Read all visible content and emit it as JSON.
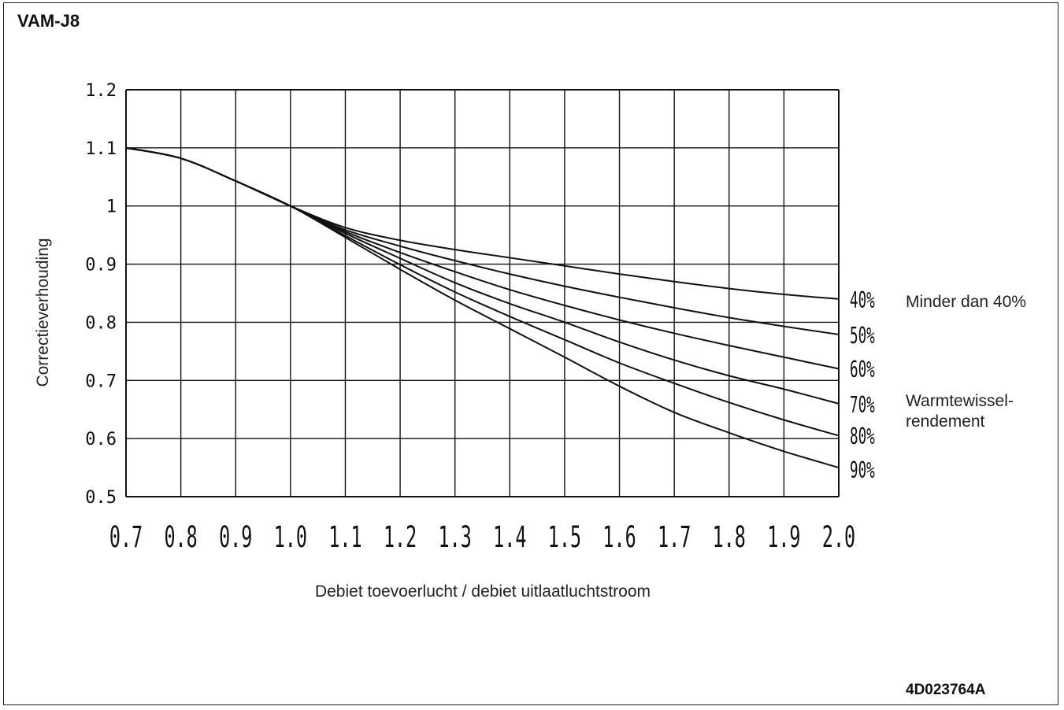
{
  "header": {
    "model": "VAM-J8",
    "doc_id": "4D023764A"
  },
  "chart_data": {
    "type": "line",
    "title": "VAM-J8",
    "xlabel": "Debiet toevoerlucht / debiet uitlaatluchtstroom",
    "ylabel": "Correctieverhouding",
    "xlim": [
      0.7,
      2.0
    ],
    "ylim": [
      0.5,
      1.2
    ],
    "x_ticks": [
      "0.7",
      "0.8",
      "0.9",
      "1.0",
      "1.1",
      "1.2",
      "1.3",
      "1.4",
      "1.5",
      "1.6",
      "1.7",
      "1.8",
      "1.9",
      "2.0"
    ],
    "y_ticks": [
      "0.5",
      "0.6",
      "0.7",
      "0.8",
      "0.9",
      "1",
      "1.1",
      "1.2"
    ],
    "grid": true,
    "series": [
      {
        "name": "40%",
        "x": [
          0.7,
          0.8,
          0.9,
          1.0,
          1.1,
          1.2,
          1.3,
          1.4,
          1.5,
          1.6,
          1.7,
          1.8,
          1.9,
          2.0
        ],
        "y": [
          1.1,
          1.082,
          1.043,
          1.0,
          0.963,
          0.941,
          0.925,
          0.911,
          0.897,
          0.883,
          0.87,
          0.858,
          0.848,
          0.84
        ]
      },
      {
        "name": "50%",
        "x": [
          0.7,
          0.8,
          0.9,
          1.0,
          1.1,
          1.2,
          1.3,
          1.4,
          1.5,
          1.6,
          1.7,
          1.8,
          1.9,
          2.0
        ],
        "y": [
          1.1,
          1.082,
          1.043,
          1.0,
          0.959,
          0.931,
          0.906,
          0.883,
          0.862,
          0.843,
          0.825,
          0.808,
          0.793,
          0.779
        ]
      },
      {
        "name": "60%",
        "x": [
          0.7,
          0.8,
          0.9,
          1.0,
          1.1,
          1.2,
          1.3,
          1.4,
          1.5,
          1.6,
          1.7,
          1.8,
          1.9,
          2.0
        ],
        "y": [
          1.1,
          1.082,
          1.043,
          1.0,
          0.956,
          0.92,
          0.887,
          0.856,
          0.829,
          0.804,
          0.781,
          0.76,
          0.74,
          0.72
        ]
      },
      {
        "name": "70%",
        "x": [
          0.7,
          0.8,
          0.9,
          1.0,
          1.1,
          1.2,
          1.3,
          1.4,
          1.5,
          1.6,
          1.7,
          1.8,
          1.9,
          2.0
        ],
        "y": [
          1.1,
          1.082,
          1.043,
          1.0,
          0.953,
          0.91,
          0.868,
          0.832,
          0.8,
          0.766,
          0.735,
          0.708,
          0.685,
          0.66
        ]
      },
      {
        "name": "80%",
        "x": [
          0.7,
          0.8,
          0.9,
          1.0,
          1.1,
          1.2,
          1.3,
          1.4,
          1.5,
          1.6,
          1.7,
          1.8,
          1.9,
          2.0
        ],
        "y": [
          1.1,
          1.082,
          1.043,
          1.0,
          0.949,
          0.899,
          0.852,
          0.81,
          0.77,
          0.73,
          0.695,
          0.662,
          0.632,
          0.605
        ]
      },
      {
        "name": "90%",
        "x": [
          0.7,
          0.8,
          0.9,
          1.0,
          1.1,
          1.2,
          1.3,
          1.4,
          1.5,
          1.6,
          1.7,
          1.8,
          1.9,
          2.0
        ],
        "y": [
          1.1,
          1.082,
          1.043,
          1.0,
          0.946,
          0.891,
          0.838,
          0.789,
          0.74,
          0.69,
          0.645,
          0.61,
          0.578,
          0.55
        ]
      }
    ],
    "annotations": {
      "top": "Minder dan 40%",
      "group_line1": "Warmtewissel-",
      "group_line2": "rendement"
    }
  }
}
